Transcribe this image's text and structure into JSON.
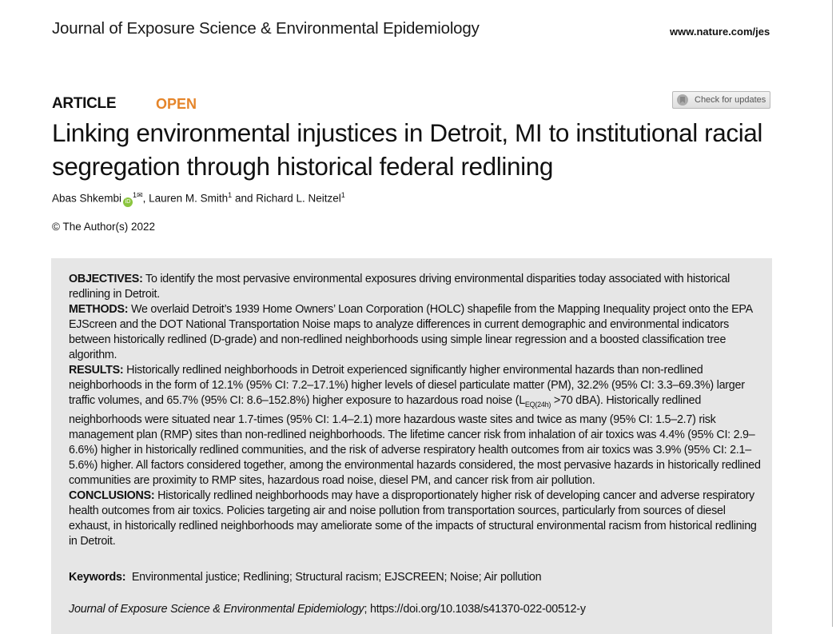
{
  "header": {
    "journal": "Journal of Exposure Science & Environmental Epidemiology",
    "website": "www.nature.com/jes"
  },
  "article_type": "ARTICLE",
  "access": "OPEN",
  "access_color": "#e5852a",
  "check_updates": {
    "label": "Check for updates",
    "icon": "bookmark-icon"
  },
  "title": "Linking environmental injustices in Detroit, MI to institutional racial segregation through historical federal redlining",
  "authors": [
    {
      "name": "Abas Shkembi",
      "affil": "1",
      "orcid": "iD",
      "email_icon": "✉"
    },
    {
      "name": "Lauren M. Smith",
      "affil": "1"
    },
    {
      "name": "Richard L. Neitzel",
      "affil": "1"
    }
  ],
  "authors_sep": {
    "comma": ", ",
    "and": " and "
  },
  "copyright": "© The Author(s) 2022",
  "abstract": {
    "objectives": {
      "label": "OBJECTIVES:",
      "text": " To identify the most pervasive environmental exposures driving environmental disparities today associated with historical redlining in Detroit."
    },
    "methods": {
      "label": "METHODS:",
      "text": " We overlaid Detroit’s 1939 Home Owners’ Loan Corporation (HOLC) shapefile from the Mapping Inequality project onto the EPA EJScreen and the DOT National Transportation Noise maps to analyze differences in current demographic and environmental indicators between historically redlined (D-grade) and non-redlined neighborhoods using simple linear regression and a boosted classification tree algorithm."
    },
    "results": {
      "label": "RESULTS:",
      "text_pre": " Historically redlined neighborhoods in Detroit experienced significantly higher environmental hazards than non-redlined neighborhoods in the form of 12.1% (95% CI: 7.2–17.1%) higher levels of diesel particulate matter (PM), 32.2% (95% CI: 3.3–69.3%) larger traffic volumes, and 65.7% (95% CI: 8.6–152.8%) higher exposure to hazardous road noise (L",
      "subscript": "EQ(24h)",
      "text_post": " >70 dBA). Historically redlined neighborhoods were situated near 1.7-times (95% CI: 1.4–2.1) more hazardous waste sites and twice as many (95% CI: 1.5–2.7) risk management plan (RMP) sites than non-redlined neighborhoods. The lifetime cancer risk from inhalation of air toxics was 4.4% (95% CI: 2.9–6.6%) higher in historically redlined communities, and the risk of adverse respiratory health outcomes from air toxics was 3.9% (95% CI: 2.1–5.6%) higher. All factors considered together, among the environmental hazards considered, the most pervasive hazards in historically redlined communities are proximity to RMP sites, hazardous road noise, diesel PM, and cancer risk from air pollution."
    },
    "conclusions": {
      "label": "CONCLUSIONS:",
      "text": " Historically redlined neighborhoods may have a disproportionately higher risk of developing cancer and adverse respiratory health outcomes from air toxics. Policies targeting air and noise pollution from transportation sources, particularly from sources of diesel exhaust, in historically redlined neighborhoods may ameliorate some of the impacts of structural environmental racism from historical redlining in Detroit."
    }
  },
  "keywords": {
    "label": "Keywords:",
    "text": "Environmental justice; Redlining; Structural racism; EJSCREEN; Noise; Air pollution"
  },
  "citation": {
    "journal": "Journal of Exposure Science & Environmental Epidemiology",
    "doi": "; https://doi.org/10.1038/s41370-022-00512-y"
  }
}
